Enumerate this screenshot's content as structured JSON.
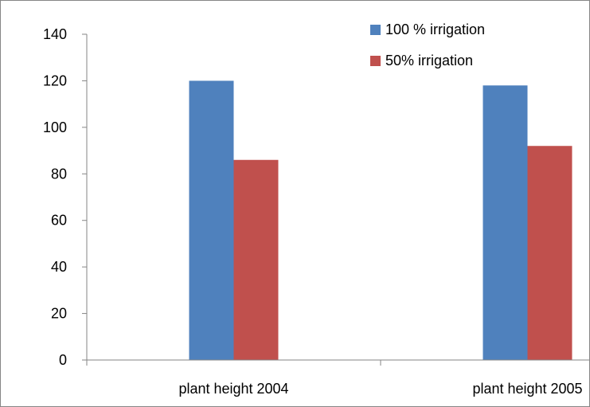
{
  "chart_data": {
    "type": "bar",
    "categories": [
      "plant height 2004",
      "plant height 2005"
    ],
    "series": [
      {
        "name": "100 % irrigation",
        "values": [
          120,
          118
        ],
        "color": "#4F81BD"
      },
      {
        "name": "50% irrigation",
        "values": [
          86,
          92
        ],
        "color": "#C0504D"
      }
    ],
    "ylim": [
      0,
      140
    ],
    "yticks": [
      "0",
      "20",
      "40",
      "60",
      "80",
      "100",
      "120",
      "140"
    ],
    "grid": false,
    "legend_position": "top-right"
  }
}
